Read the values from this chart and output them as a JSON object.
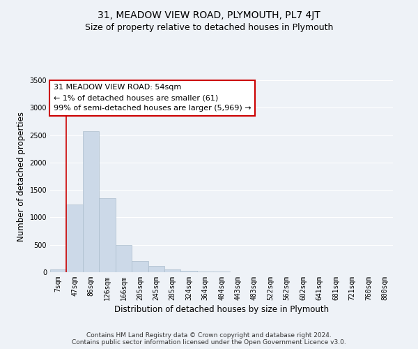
{
  "title_line1": "31, MEADOW VIEW ROAD, PLYMOUTH, PL7 4JT",
  "title_line2": "Size of property relative to detached houses in Plymouth",
  "xlabel": "Distribution of detached houses by size in Plymouth",
  "ylabel": "Number of detached properties",
  "bar_labels": [
    "7sqm",
    "47sqm",
    "86sqm",
    "126sqm",
    "166sqm",
    "205sqm",
    "245sqm",
    "285sqm",
    "324sqm",
    "364sqm",
    "404sqm",
    "443sqm",
    "483sqm",
    "522sqm",
    "562sqm",
    "602sqm",
    "641sqm",
    "681sqm",
    "721sqm",
    "760sqm",
    "800sqm"
  ],
  "bar_values": [
    50,
    1240,
    2570,
    1350,
    500,
    200,
    110,
    45,
    25,
    15,
    10,
    5,
    5,
    0,
    0,
    0,
    0,
    0,
    0,
    0,
    0
  ],
  "bar_color": "#ccd9e8",
  "bar_edge_color": "#aabccc",
  "ylim": [
    0,
    3500
  ],
  "yticks": [
    0,
    500,
    1000,
    1500,
    2000,
    2500,
    3000,
    3500
  ],
  "red_line_x": 0.5,
  "red_line_color": "#cc0000",
  "annotation_text_line1": "31 MEADOW VIEW ROAD: 54sqm",
  "annotation_text_line2": "← 1% of detached houses are smaller (61)",
  "annotation_text_line3": "99% of semi-detached houses are larger (5,969) →",
  "annotation_box_color": "#ffffff",
  "annotation_box_edge": "#cc0000",
  "footer_line1": "Contains HM Land Registry data © Crown copyright and database right 2024.",
  "footer_line2": "Contains public sector information licensed under the Open Government Licence v3.0.",
  "background_color": "#eef2f7",
  "plot_bg_color": "#eef2f7",
  "grid_color": "#ffffff",
  "title_fontsize": 10,
  "subtitle_fontsize": 9,
  "axis_label_fontsize": 8.5,
  "tick_fontsize": 7,
  "footer_fontsize": 6.5,
  "annot_fontsize": 8
}
